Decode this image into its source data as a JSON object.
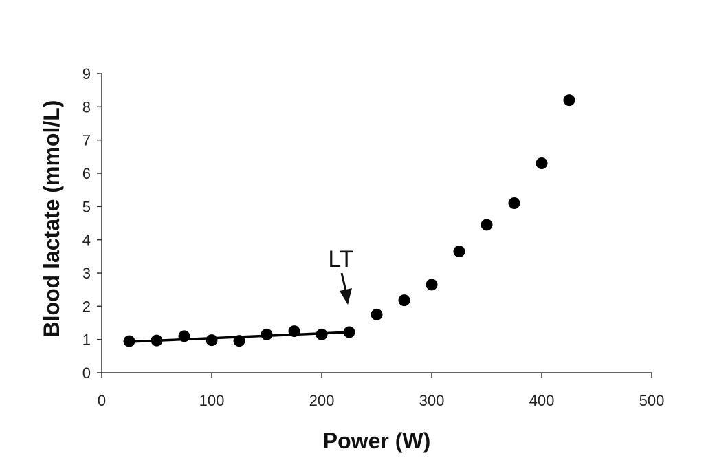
{
  "chart_data": {
    "type": "scatter",
    "title": "",
    "xlabel": "Power (W)",
    "ylabel": "Blood lactate (mmol/L)",
    "xlim": [
      0,
      500
    ],
    "ylim": [
      0,
      9
    ],
    "xticks": [
      0,
      100,
      200,
      300,
      400,
      500
    ],
    "xtick_labels": [
      "0",
      "100",
      "200",
      "300",
      "400",
      "500"
    ],
    "yticks": [
      0,
      1,
      2,
      3,
      4,
      5,
      6,
      7,
      8,
      9
    ],
    "ytick_labels": [
      "0",
      "1",
      "2",
      "3",
      "4",
      "5",
      "6",
      "7",
      "8",
      "9"
    ],
    "grid": false,
    "legend": "none",
    "series": [
      {
        "x": [
          25,
          50,
          75,
          100,
          125,
          150,
          175,
          200,
          225,
          250,
          275,
          300,
          325,
          350,
          375,
          400,
          425
        ],
        "y": [
          0.95,
          0.97,
          1.1,
          0.98,
          0.96,
          1.15,
          1.25,
          1.15,
          1.22,
          1.75,
          2.18,
          2.65,
          3.65,
          4.45,
          5.1,
          6.3,
          8.2
        ],
        "marker": "circle",
        "color": "#000000"
      }
    ],
    "trendline": {
      "x": [
        25,
        225
      ],
      "y": [
        0.93,
        1.22
      ],
      "color": "#000000"
    },
    "annotations": [
      {
        "text": "LT",
        "x": 225,
        "y": 1.22
      }
    ]
  }
}
